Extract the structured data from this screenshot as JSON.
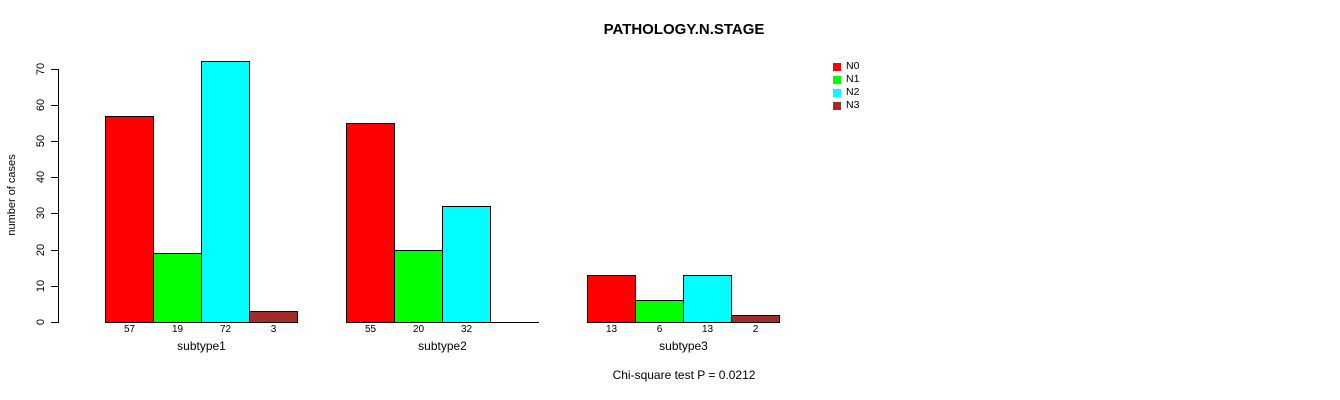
{
  "title": "PATHOLOGY.N.STAGE",
  "footer": {
    "annotation": "Chi-square test P = 0.0212"
  },
  "chart_data": {
    "type": "bar",
    "title": "PATHOLOGY.N.STAGE",
    "xlabel": "",
    "ylabel": "number of cases",
    "categories": [
      "subtype1",
      "subtype2",
      "subtype3"
    ],
    "series": [
      {
        "name": "N0",
        "color": "#ff0000",
        "values": [
          57,
          55,
          13
        ]
      },
      {
        "name": "N1",
        "color": "#00ff00",
        "values": [
          19,
          20,
          6
        ]
      },
      {
        "name": "N2",
        "color": "#00ffff",
        "values": [
          72,
          32,
          13
        ]
      },
      {
        "name": "N3",
        "color": "#a52a2a",
        "values": [
          3,
          0,
          2
        ]
      }
    ],
    "yticks": [
      0,
      10,
      20,
      30,
      40,
      50,
      60,
      70
    ],
    "ylim": [
      0,
      72
    ],
    "grid": false,
    "bar_value_labels_shown": true,
    "zero_bars_hidden": true,
    "legend_position": "top-right",
    "legend_entries": [
      "N0",
      "N1",
      "N2",
      "N3"
    ],
    "annotation": "Chi-square test P = 0.0212"
  }
}
